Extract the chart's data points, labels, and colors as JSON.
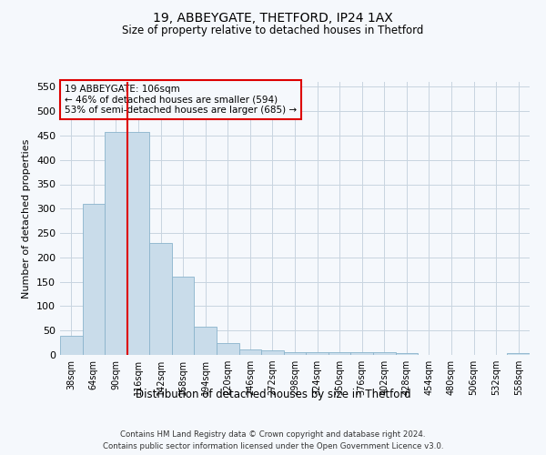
{
  "title": "19, ABBEYGATE, THETFORD, IP24 1AX",
  "subtitle": "Size of property relative to detached houses in Thetford",
  "xlabel": "Distribution of detached houses by size in Thetford",
  "ylabel": "Number of detached properties",
  "footnote1": "Contains HM Land Registry data © Crown copyright and database right 2024.",
  "footnote2": "Contains public sector information licensed under the Open Government Licence v3.0.",
  "annotation_line1": "19 ABBEYGATE: 106sqm",
  "annotation_line2": "← 46% of detached houses are smaller (594)",
  "annotation_line3": "53% of semi-detached houses are larger (685) →",
  "bar_color": "#c9dcea",
  "bar_edge_color": "#8ab4cc",
  "vline_color": "#dd0000",
  "annotation_box_edge_color": "#dd0000",
  "background_color": "#f5f8fc",
  "grid_color": "#c8d4e0",
  "categories": [
    "38sqm",
    "64sqm",
    "90sqm",
    "116sqm",
    "142sqm",
    "168sqm",
    "194sqm",
    "220sqm",
    "246sqm",
    "272sqm",
    "298sqm",
    "324sqm",
    "350sqm",
    "376sqm",
    "402sqm",
    "428sqm",
    "454sqm",
    "480sqm",
    "506sqm",
    "532sqm",
    "558sqm"
  ],
  "values": [
    40,
    310,
    457,
    457,
    230,
    160,
    58,
    25,
    12,
    9,
    5,
    5,
    5,
    5,
    5,
    4,
    0,
    0,
    0,
    0,
    3
  ],
  "vline_x": 2.5,
  "ylim": [
    0,
    560
  ],
  "yticks": [
    0,
    50,
    100,
    150,
    200,
    250,
    300,
    350,
    400,
    450,
    500,
    550
  ]
}
